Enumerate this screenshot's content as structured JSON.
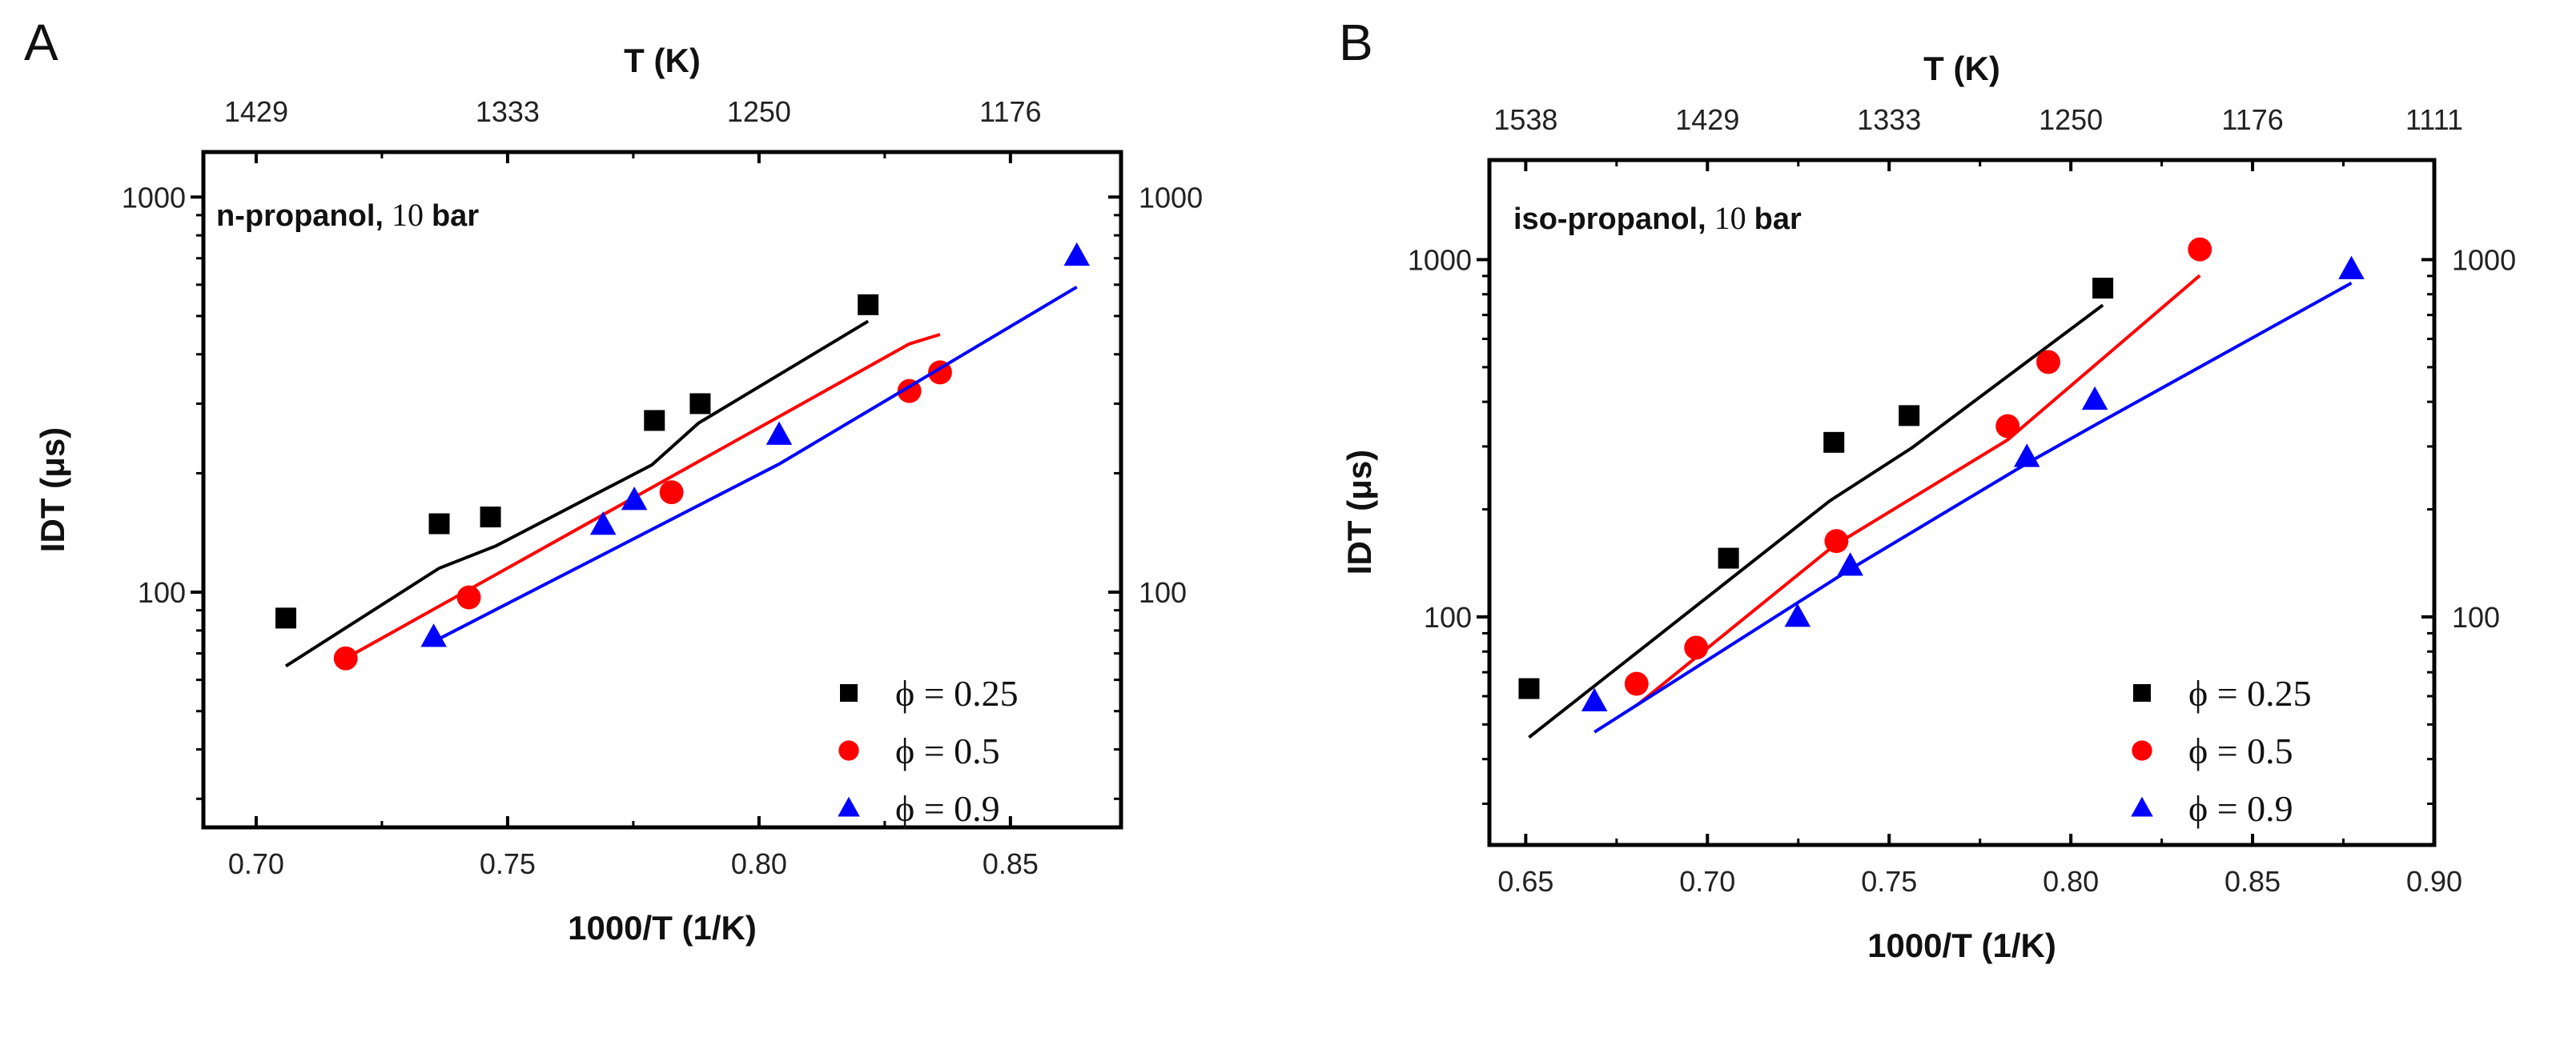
{
  "chart_data": [
    {
      "type": "scatter",
      "panel_label": "A",
      "annotation": {
        "fuel": "n-propanol,",
        "pressure": "10",
        "unit": "bar"
      },
      "xlabel": "1000/T (1/K)",
      "ylabel": "IDT (μs)",
      "top_xlabel": "T (K)",
      "xlim": [
        0.6895,
        0.872
      ],
      "ylim": [
        25.4,
        1300
      ],
      "yscale": "log",
      "xticks": [
        0.7,
        0.75,
        0.8,
        0.85
      ],
      "xtick_labels": [
        "0.70",
        "0.75",
        "0.80",
        "0.85"
      ],
      "top_ticks": [
        0.7,
        0.75,
        0.8,
        0.85
      ],
      "top_tick_labels": [
        "1429",
        "1333",
        "1250",
        "1176"
      ],
      "yticks": [
        100,
        1000
      ],
      "ytick_labels": [
        "100",
        "1000"
      ],
      "legend_position": "bottom-right",
      "series": [
        {
          "name": "ϕ = 0.25",
          "marker": "square",
          "color": "#000000",
          "points": [
            [
              0.7059,
              86
            ],
            [
              0.7364,
              149
            ],
            [
              0.7466,
              155
            ],
            [
              0.7792,
              272
            ],
            [
              0.7883,
              300
            ],
            [
              0.8217,
              534
            ]
          ],
          "model": [
            [
              0.7059,
              65
            ],
            [
              0.7364,
              115
            ],
            [
              0.7477,
              131
            ],
            [
              0.7787,
              210
            ],
            [
              0.788,
              268
            ],
            [
              0.8217,
              485
            ]
          ]
        },
        {
          "name": "ϕ = 0.5",
          "marker": "circle",
          "color": "#ff0000",
          "points": [
            [
              0.7178,
              68
            ],
            [
              0.7423,
              97
            ],
            [
              0.7826,
              179
            ],
            [
              0.8299,
              323
            ],
            [
              0.836,
              360
            ]
          ],
          "model": [
            [
              0.7178,
              68
            ],
            [
              0.8299,
              425
            ],
            [
              0.836,
              449
            ]
          ]
        },
        {
          "name": "ϕ = 0.9",
          "marker": "triangle",
          "color": "#0000ff",
          "points": [
            [
              0.7353,
              77
            ],
            [
              0.769,
              148
            ],
            [
              0.7752,
              171
            ],
            [
              0.804,
              250
            ],
            [
              0.8632,
              710
            ]
          ],
          "model": [
            [
              0.7353,
              75
            ],
            [
              0.804,
              211
            ],
            [
              0.8632,
              592
            ]
          ]
        }
      ]
    },
    {
      "type": "scatter",
      "panel_label": "B",
      "annotation": {
        "fuel": "iso-propanol,",
        "pressure": "10",
        "unit": "bar"
      },
      "xlabel": "1000/T (1/K)",
      "ylabel": "IDT (μs)",
      "top_xlabel": "T (K)",
      "xlim": [
        0.64,
        0.9
      ],
      "ylim": [
        23,
        1900
      ],
      "yscale": "log",
      "xticks": [
        0.65,
        0.7,
        0.75,
        0.8,
        0.85,
        0.9
      ],
      "xtick_labels": [
        "0.65",
        "0.70",
        "0.75",
        "0.80",
        "0.85",
        "0.90"
      ],
      "top_ticks": [
        0.65,
        0.7,
        0.75,
        0.8,
        0.85,
        0.9
      ],
      "top_tick_labels": [
        "1538",
        "1429",
        "1333",
        "1250",
        "1176",
        "1111"
      ],
      "yticks": [
        100,
        1000
      ],
      "ytick_labels": [
        "100",
        "1000"
      ],
      "legend_position": "bottom-right",
      "series": [
        {
          "name": "ϕ = 0.25",
          "marker": "square",
          "color": "#000000",
          "points": [
            [
              0.6509,
              63
            ],
            [
              0.7058,
              146
            ],
            [
              0.7348,
              308
            ],
            [
              0.7555,
              366
            ],
            [
              0.8088,
              832
            ]
          ],
          "model": [
            [
              0.6509,
              46
            ],
            [
              0.7336,
              211
            ],
            [
              0.7564,
              298
            ],
            [
              0.8088,
              746
            ]
          ]
        },
        {
          "name": "ϕ = 0.5",
          "marker": "circle",
          "color": "#ff0000",
          "points": [
            [
              0.6805,
              65
            ],
            [
              0.6969,
              82
            ],
            [
              0.7355,
              163
            ],
            [
              0.7826,
              342
            ],
            [
              0.7938,
              517
            ],
            [
              0.8355,
              1068
            ]
          ],
          "model": [
            [
              0.6805,
              56.5
            ],
            [
              0.7347,
              158
            ],
            [
              0.7826,
              313
            ],
            [
              0.8355,
              903
            ]
          ]
        },
        {
          "name": "ϕ = 0.9",
          "marker": "triangle",
          "color": "#0000ff",
          "points": [
            [
              0.6689,
              58
            ],
            [
              0.7248,
              100
            ],
            [
              0.7393,
              139
            ],
            [
              0.7879,
              280
            ],
            [
              0.8066,
              405
            ],
            [
              0.8772,
              940
            ]
          ],
          "model": [
            [
              0.6689,
              47.6
            ],
            [
              0.7393,
              136
            ],
            [
              0.7879,
              269
            ],
            [
              0.8066,
              344
            ],
            [
              0.8772,
              860
            ]
          ]
        }
      ]
    }
  ]
}
